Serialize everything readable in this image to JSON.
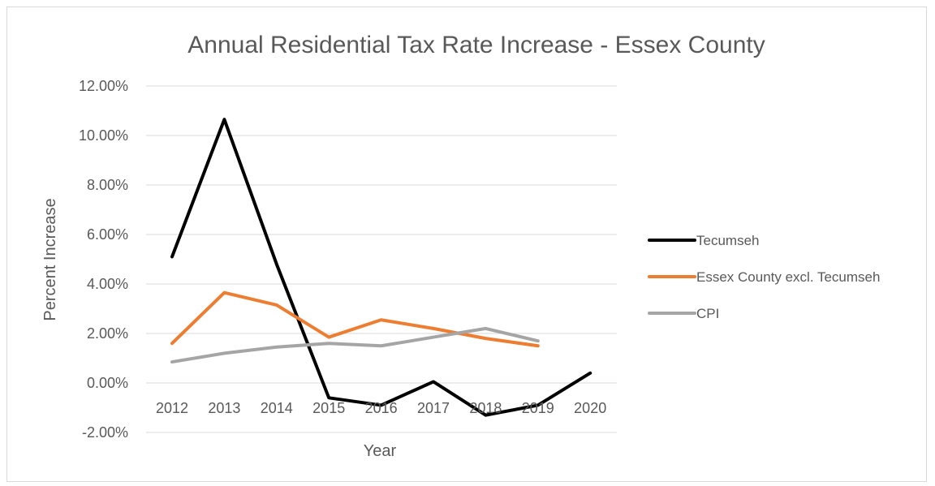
{
  "chart_data": {
    "type": "line",
    "title": "Annual Residential Tax Rate Increase - Essex County",
    "xlabel": "Year",
    "ylabel": "Percent Increase",
    "categories": [
      "2012",
      "2013",
      "2014",
      "2015",
      "2016",
      "2017",
      "2018",
      "2019",
      "2020"
    ],
    "y_ticks": [
      "12.00%",
      "10.00%",
      "8.00%",
      "6.00%",
      "4.00%",
      "2.00%",
      "0.00%",
      "-2.00%"
    ],
    "ylim": [
      -2,
      12
    ],
    "grid": true,
    "legend_position": "right",
    "series": [
      {
        "name": "Tecumseh",
        "color": "#000000",
        "values": [
          5.1,
          10.65,
          4.8,
          -0.6,
          -0.9,
          0.05,
          -1.3,
          -0.9,
          0.4
        ]
      },
      {
        "name": "Essex County excl. Tecumseh",
        "color": "#ed7d31",
        "values": [
          1.6,
          3.65,
          3.15,
          1.85,
          2.55,
          2.2,
          1.8,
          1.5,
          null
        ]
      },
      {
        "name": "CPI",
        "color": "#a5a5a5",
        "values": [
          0.85,
          1.2,
          1.45,
          1.6,
          1.5,
          1.85,
          2.2,
          1.7,
          null
        ]
      }
    ]
  }
}
